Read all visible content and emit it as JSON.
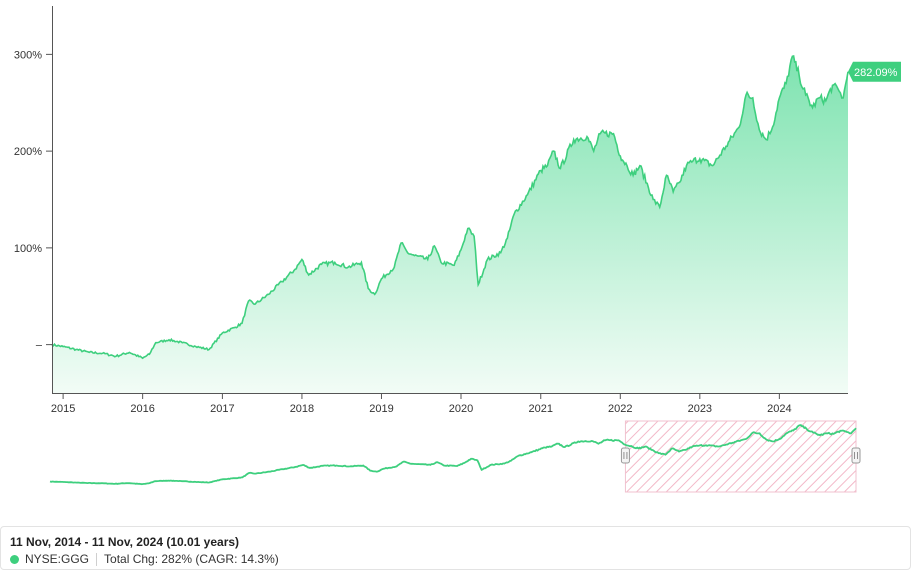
{
  "footer": {
    "range_text": "11 Nov, 2014 - 11 Nov, 2024 (10.01 years)",
    "series_name": "NYSE:GGG",
    "total_change_text": "Total Chg: 282% (CAGR: 14.3%)"
  },
  "colors": {
    "line": "#3ecf7e",
    "fill_top": "#7ee3b0",
    "fill_bottom": "#f2fcf6",
    "badge": "#3ecf7e",
    "range_hatch": "#f3b8c8"
  },
  "chart_data": {
    "type": "area",
    "title": "",
    "xlabel": "",
    "ylabel": "",
    "x_ticks": [
      "2015",
      "2016",
      "2017",
      "2018",
      "2019",
      "2020",
      "2021",
      "2022",
      "2023",
      "2024"
    ],
    "y_ticks": [
      {
        "value": 300,
        "label": "300%"
      },
      {
        "value": 200,
        "label": "200%"
      },
      {
        "value": 100,
        "label": "100%"
      },
      {
        "value": 0,
        "label": "–"
      }
    ],
    "xlim": [
      "2014-11-11",
      "2024-11-11"
    ],
    "ylim": [
      -50,
      350
    ],
    "last_value_label": "282.09%",
    "navigator_selected_range": [
      "2022-01-01",
      "2024-11-11"
    ],
    "series": [
      {
        "name": "NYSE:GGG",
        "points": [
          [
            "2014-11-11",
            0
          ],
          [
            "2015-01-01",
            -2
          ],
          [
            "2015-03-01",
            -5
          ],
          [
            "2015-05-01",
            -8
          ],
          [
            "2015-07-01",
            -9
          ],
          [
            "2015-09-01",
            -12
          ],
          [
            "2015-11-01",
            -8
          ],
          [
            "2016-01-01",
            -14
          ],
          [
            "2016-02-01",
            -10
          ],
          [
            "2016-03-01",
            2
          ],
          [
            "2016-05-01",
            5
          ],
          [
            "2016-07-01",
            2
          ],
          [
            "2016-09-01",
            -2
          ],
          [
            "2016-11-01",
            -5
          ],
          [
            "2017-01-01",
            12
          ],
          [
            "2017-03-01",
            18
          ],
          [
            "2017-04-01",
            22
          ],
          [
            "2017-05-01",
            45
          ],
          [
            "2017-06-01",
            42
          ],
          [
            "2017-08-01",
            52
          ],
          [
            "2017-10-01",
            65
          ],
          [
            "2017-12-01",
            78
          ],
          [
            "2018-01-01",
            88
          ],
          [
            "2018-02-01",
            72
          ],
          [
            "2018-04-01",
            83
          ],
          [
            "2018-06-01",
            85
          ],
          [
            "2018-08-01",
            80
          ],
          [
            "2018-10-01",
            85
          ],
          [
            "2018-11-01",
            58
          ],
          [
            "2018-12-01",
            52
          ],
          [
            "2019-01-01",
            68
          ],
          [
            "2019-03-01",
            80
          ],
          [
            "2019-04-01",
            105
          ],
          [
            "2019-05-01",
            95
          ],
          [
            "2019-06-01",
            92
          ],
          [
            "2019-08-01",
            88
          ],
          [
            "2019-09-01",
            102
          ],
          [
            "2019-10-01",
            85
          ],
          [
            "2019-12-01",
            82
          ],
          [
            "2020-01-01",
            98
          ],
          [
            "2020-02-01",
            120
          ],
          [
            "2020-03-01",
            112
          ],
          [
            "2020-03-20",
            62
          ],
          [
            "2020-05-01",
            88
          ],
          [
            "2020-07-01",
            95
          ],
          [
            "2020-08-01",
            110
          ],
          [
            "2020-09-01",
            135
          ],
          [
            "2020-11-01",
            155
          ],
          [
            "2021-01-01",
            180
          ],
          [
            "2021-02-01",
            185
          ],
          [
            "2021-03-01",
            200
          ],
          [
            "2021-04-01",
            182
          ],
          [
            "2021-06-01",
            212
          ],
          [
            "2021-08-01",
            215
          ],
          [
            "2021-09-01",
            200
          ],
          [
            "2021-10-01",
            218
          ],
          [
            "2021-12-01",
            218
          ],
          [
            "2022-01-01",
            195
          ],
          [
            "2022-02-01",
            185
          ],
          [
            "2022-03-01",
            175
          ],
          [
            "2022-04-01",
            185
          ],
          [
            "2022-06-01",
            150
          ],
          [
            "2022-07-01",
            142
          ],
          [
            "2022-08-01",
            175
          ],
          [
            "2022-09-01",
            158
          ],
          [
            "2022-10-01",
            168
          ],
          [
            "2022-11-01",
            185
          ],
          [
            "2022-12-01",
            190
          ],
          [
            "2023-01-01",
            192
          ],
          [
            "2023-03-01",
            185
          ],
          [
            "2023-05-01",
            205
          ],
          [
            "2023-07-01",
            225
          ],
          [
            "2023-08-01",
            258
          ],
          [
            "2023-09-01",
            255
          ],
          [
            "2023-10-01",
            222
          ],
          [
            "2023-11-01",
            212
          ],
          [
            "2023-12-01",
            225
          ],
          [
            "2024-01-01",
            255
          ],
          [
            "2024-02-01",
            270
          ],
          [
            "2024-03-01",
            298
          ],
          [
            "2024-04-01",
            278
          ],
          [
            "2024-05-01",
            258
          ],
          [
            "2024-06-01",
            245
          ],
          [
            "2024-07-01",
            255
          ],
          [
            "2024-08-01",
            252
          ],
          [
            "2024-09-01",
            268
          ],
          [
            "2024-10-01",
            262
          ],
          [
            "2024-10-20",
            255
          ],
          [
            "2024-11-11",
            282
          ]
        ]
      }
    ]
  }
}
